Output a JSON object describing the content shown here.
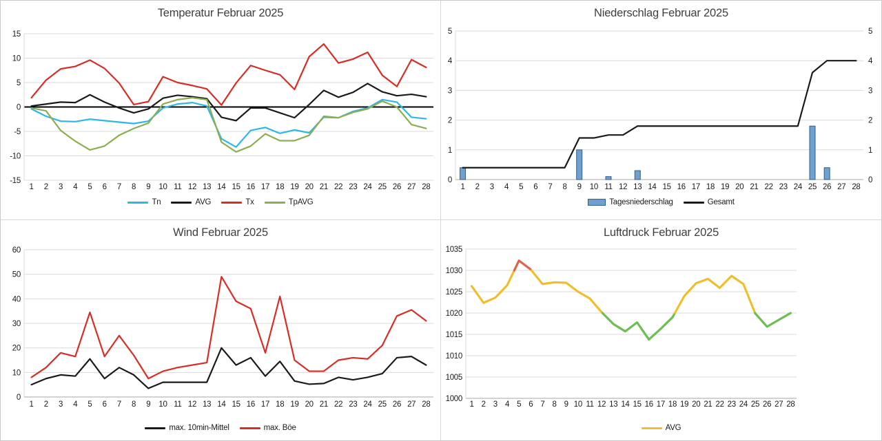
{
  "chart_data": [
    {
      "id": "temperature",
      "type": "line",
      "title": "Temperatur Februar 2025",
      "categories": [
        1,
        2,
        3,
        4,
        5,
        6,
        7,
        8,
        9,
        10,
        11,
        12,
        13,
        14,
        15,
        16,
        17,
        18,
        19,
        20,
        21,
        22,
        23,
        24,
        25,
        26,
        27,
        28
      ],
      "ylim": [
        -15,
        15
      ],
      "ytick_step": 5,
      "zero_axis": true,
      "axes": "left",
      "grid": true,
      "legend_position": "bottom",
      "series": [
        {
          "name": "Tn",
          "color": "#2EB7E6",
          "values": [
            -0.4,
            -1.9,
            -2.9,
            -3.0,
            -2.5,
            -2.8,
            -3.1,
            -3.4,
            -2.9,
            -0.2,
            0.6,
            0.9,
            0.2,
            -6.5,
            -8.2,
            -4.8,
            -4.2,
            -5.4,
            -4.7,
            -5.3,
            -2.1,
            -2.2,
            -0.9,
            -0.2,
            1.5,
            1.0,
            -2.1,
            -2.4
          ]
        },
        {
          "name": "AVG",
          "color": "#1A1A1A",
          "values": [
            0.2,
            0.6,
            1.0,
            0.9,
            2.5,
            1.0,
            -0.2,
            -1.2,
            -0.4,
            1.8,
            2.4,
            2.1,
            1.7,
            -2.1,
            -2.8,
            -0.2,
            -0.2,
            -1.2,
            -2.2,
            0.5,
            3.4,
            2.0,
            3.0,
            4.8,
            3.1,
            2.3,
            2.6,
            2.1
          ]
        },
        {
          "name": "Tx",
          "color": "#D92C25",
          "values": [
            1.9,
            5.5,
            7.8,
            8.3,
            9.6,
            7.9,
            4.9,
            0.5,
            1.1,
            6.2,
            5.0,
            4.4,
            3.7,
            0.4,
            4.9,
            8.5,
            7.5,
            6.6,
            3.6,
            10.3,
            12.9,
            9.0,
            9.8,
            11.2,
            6.5,
            4.2,
            9.7,
            8.1
          ]
        },
        {
          "name": "TpAVG",
          "color": "#8BAE50",
          "values": [
            -0.2,
            -0.8,
            -4.8,
            -7.0,
            -8.8,
            -8.0,
            -5.8,
            -4.4,
            -3.3,
            0.6,
            1.5,
            1.9,
            1.5,
            -7.2,
            -9.2,
            -8.0,
            -5.5,
            -6.9,
            -6.9,
            -5.8,
            -1.9,
            -2.2,
            -1.1,
            -0.4,
            1.2,
            0.0,
            -3.6,
            -4.4
          ]
        }
      ]
    },
    {
      "id": "precipitation",
      "type": "bar+line",
      "title": "Niederschlag Februar 2025",
      "categories": [
        1,
        2,
        3,
        4,
        5,
        6,
        7,
        8,
        9,
        10,
        11,
        12,
        13,
        14,
        15,
        16,
        17,
        18,
        19,
        20,
        21,
        22,
        23,
        24,
        25,
        26,
        27,
        28
      ],
      "ylim": [
        0,
        5
      ],
      "ytick_step": 1,
      "zero_axis": false,
      "axes": "both",
      "grid": true,
      "legend_position": "bottom",
      "series": [
        {
          "name": "Tagesniederschlag",
          "type": "bar",
          "color": "#6FA0CE",
          "border": "#2F5E8F",
          "values": [
            0.4,
            0,
            0,
            0,
            0,
            0,
            0,
            0,
            1.0,
            0,
            0.1,
            0,
            0.3,
            0,
            0,
            0,
            0,
            0,
            0,
            0,
            0,
            0,
            0,
            0,
            1.8,
            0.4,
            0,
            0
          ]
        },
        {
          "name": "Gesamt",
          "type": "line",
          "color": "#1A1A1A",
          "values": [
            0.4,
            0.4,
            0.4,
            0.4,
            0.4,
            0.4,
            0.4,
            0.4,
            1.4,
            1.4,
            1.5,
            1.5,
            1.8,
            1.8,
            1.8,
            1.8,
            1.8,
            1.8,
            1.8,
            1.8,
            1.8,
            1.8,
            1.8,
            1.8,
            3.6,
            4.0,
            4.0,
            4.0
          ]
        }
      ]
    },
    {
      "id": "wind",
      "type": "line",
      "title": "Wind Februar 2025",
      "categories": [
        1,
        2,
        3,
        4,
        5,
        6,
        7,
        8,
        9,
        10,
        11,
        12,
        13,
        14,
        15,
        16,
        17,
        18,
        19,
        20,
        21,
        22,
        23,
        24,
        25,
        26,
        27,
        28
      ],
      "ylim": [
        0,
        60
      ],
      "ytick_step": 10,
      "zero_axis": false,
      "axes": "left",
      "grid": true,
      "legend_position": "bottom",
      "series": [
        {
          "name": "max. 10min-Mittel",
          "color": "#1A1A1A",
          "values": [
            5,
            7.5,
            9,
            8.5,
            15.5,
            7.5,
            12,
            9,
            3.5,
            6,
            6,
            6,
            6,
            20,
            13,
            16,
            8.5,
            14.5,
            6.5,
            5.2,
            5.5,
            8,
            7,
            8,
            9.5,
            16,
            16.5,
            13
          ]
        },
        {
          "name": "max. Böe",
          "color": "#D92C25",
          "values": [
            8,
            12,
            18,
            16.5,
            34.5,
            16.5,
            25,
            17,
            7.5,
            10.5,
            12,
            13,
            14,
            49,
            39,
            36,
            18,
            41,
            15,
            10.5,
            10.5,
            15,
            16,
            15.5,
            21,
            33,
            35.5,
            31
          ]
        }
      ]
    },
    {
      "id": "pressure",
      "type": "line",
      "title": "Luftdruck Februar 2025",
      "categories": [
        1,
        2,
        3,
        4,
        5,
        6,
        7,
        8,
        9,
        10,
        11,
        12,
        13,
        14,
        15,
        16,
        17,
        18,
        19,
        20,
        21,
        22,
        23,
        24,
        25,
        26,
        27,
        28
      ],
      "ylim": [
        1000,
        1035
      ],
      "ytick_step": 5,
      "zero_axis": false,
      "axes": "left",
      "grid": true,
      "legend_position": "bottom",
      "series": [
        {
          "name": "AVG",
          "color": "#EFBE2C",
          "color_rules": {
            "above_threshold": 1030,
            "above_color": "#E2604A",
            "below_threshold": 1020,
            "below_color": "#6DBE51"
          },
          "values": [
            1026.3,
            1022.4,
            1023.6,
            1026.5,
            1032.3,
            1030.2,
            1026.8,
            1027.2,
            1027.1,
            1025.0,
            1023.4,
            1020.2,
            1017.4,
            1015.7,
            1017.8,
            1013.8,
            1016.3,
            1019.0,
            1024.0,
            1027.0,
            1028.0,
            1025.9,
            1028.7,
            1026.8,
            1019.9,
            1016.8,
            1018.4,
            1020.0
          ]
        }
      ]
    }
  ]
}
